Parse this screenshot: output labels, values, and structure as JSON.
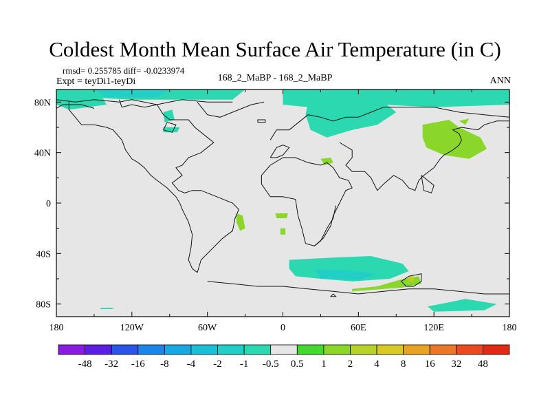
{
  "chart_data": {
    "type": "heatmap",
    "title": "Coldest Month Mean Surface Air Temperature (in C)",
    "stats_line": "rmsd= 0.255785 diff= -0.0233974",
    "experiment_line": "Expt = teyDi1-teyDi",
    "center_label": "168_2_MaBP - 168_2_MaBP",
    "right_label": "ANN",
    "xlim": [
      -180,
      180
    ],
    "ylim": [
      -90,
      90
    ],
    "x_ticks": [
      {
        "value": -180,
        "label": "180"
      },
      {
        "value": -120,
        "label": "120W"
      },
      {
        "value": -60,
        "label": "60W"
      },
      {
        "value": 0,
        "label": "0"
      },
      {
        "value": 60,
        "label": "60E"
      },
      {
        "value": 120,
        "label": "120E"
      },
      {
        "value": 180,
        "label": "180"
      }
    ],
    "y_ticks": [
      {
        "value": 80,
        "label": "80N"
      },
      {
        "value": 40,
        "label": "40N"
      },
      {
        "value": 0,
        "label": "0"
      },
      {
        "value": -40,
        "label": "40S"
      },
      {
        "value": -80,
        "label": "80S"
      }
    ],
    "background_color": "#e6e6e6",
    "colorbar": {
      "labels": [
        "-48",
        "-32",
        "-16",
        "-8",
        "-4",
        "-2",
        "-1",
        "-0.5",
        "0.5",
        "1",
        "2",
        "4",
        "8",
        "16",
        "32",
        "48"
      ],
      "colors": [
        "#8a1be0",
        "#5a1fe0",
        "#2a55e6",
        "#1c86e8",
        "#18a8e2",
        "#1bc0d8",
        "#21cfc6",
        "#2bd8b0",
        "#e6e6e6",
        "#45d82e",
        "#8ad62a",
        "#b8d22a",
        "#d8c828",
        "#e8a228",
        "#ea7828",
        "#ea4a20",
        "#e02a14"
      ]
    },
    "regions": [
      {
        "name": "arctic-asia-band",
        "level": "-0.5",
        "pts": [
          [
            0,
            90
          ],
          [
            180,
            90
          ],
          [
            180,
            78
          ],
          [
            120,
            76
          ],
          [
            80,
            78
          ],
          [
            40,
            74
          ],
          [
            0,
            78
          ]
        ]
      },
      {
        "name": "arctic-siberia-lobe",
        "level": "-0.5",
        "pts": [
          [
            20,
            80
          ],
          [
            80,
            80
          ],
          [
            90,
            72
          ],
          [
            75,
            62
          ],
          [
            55,
            58
          ],
          [
            35,
            52
          ],
          [
            22,
            58
          ],
          [
            18,
            70
          ]
        ]
      },
      {
        "name": "arctic-west-band",
        "level": "-0.5",
        "pts": [
          [
            -180,
            90
          ],
          [
            -30,
            90
          ],
          [
            -40,
            82
          ],
          [
            -80,
            82
          ],
          [
            -120,
            82
          ],
          [
            -160,
            84
          ],
          [
            -180,
            82
          ]
        ]
      },
      {
        "name": "west-pole-patch",
        "level": "-1",
        "pts": [
          [
            -150,
            90
          ],
          [
            -90,
            90
          ],
          [
            -100,
            84
          ],
          [
            -140,
            84
          ]
        ]
      },
      {
        "name": "alaska-patch",
        "level": "-0.5",
        "pts": [
          [
            -180,
            84
          ],
          [
            -145,
            86
          ],
          [
            -140,
            78
          ],
          [
            -170,
            74
          ],
          [
            -180,
            78
          ]
        ]
      },
      {
        "name": "north-america-small-a",
        "level": "-0.5",
        "pts": [
          [
            -95,
            72
          ],
          [
            -88,
            74
          ],
          [
            -86,
            66
          ],
          [
            -94,
            64
          ]
        ]
      },
      {
        "name": "north-america-small-b",
        "level": "-0.5",
        "pts": [
          [
            -95,
            60
          ],
          [
            -82,
            60
          ],
          [
            -84,
            56
          ],
          [
            -95,
            56
          ]
        ]
      },
      {
        "name": "east-asia-patch",
        "level": "1",
        "pts": [
          [
            111,
            62
          ],
          [
            132,
            66
          ],
          [
            140,
            60
          ],
          [
            157,
            52
          ],
          [
            162,
            43
          ],
          [
            148,
            35
          ],
          [
            128,
            38
          ],
          [
            114,
            44
          ],
          [
            111,
            52
          ]
        ]
      },
      {
        "name": "east-asia-small-tail",
        "level": "1",
        "pts": [
          [
            140,
            65
          ],
          [
            148,
            67
          ],
          [
            145,
            62
          ]
        ]
      },
      {
        "name": "central-asia-blip",
        "level": "1",
        "pts": [
          [
            30,
            35
          ],
          [
            38,
            36
          ],
          [
            40,
            32
          ],
          [
            33,
            30
          ]
        ]
      },
      {
        "name": "south-america-streak",
        "level": "1",
        "pts": [
          [
            -37,
            -8
          ],
          [
            -32,
            -10
          ],
          [
            -30,
            -20
          ],
          [
            -34,
            -22
          ],
          [
            -37,
            -15
          ]
        ]
      },
      {
        "name": "atlantic-blip-a",
        "level": "1",
        "pts": [
          [
            -6,
            -8
          ],
          [
            4,
            -8
          ],
          [
            3,
            -12
          ],
          [
            -5,
            -12
          ]
        ]
      },
      {
        "name": "atlantic-blip-b",
        "level": "1",
        "pts": [
          [
            -2,
            -20
          ],
          [
            2,
            -20
          ],
          [
            2,
            -25
          ],
          [
            -2,
            -25
          ]
        ]
      },
      {
        "name": "south-large-blob",
        "level": "-0.5",
        "pts": [
          [
            5,
            -45
          ],
          [
            45,
            -43
          ],
          [
            70,
            -42
          ],
          [
            95,
            -48
          ],
          [
            100,
            -54
          ],
          [
            85,
            -60
          ],
          [
            55,
            -62
          ],
          [
            30,
            -60
          ],
          [
            10,
            -58
          ],
          [
            5,
            -52
          ]
        ]
      },
      {
        "name": "south-core",
        "level": "-1",
        "pts": [
          [
            25,
            -52
          ],
          [
            60,
            -54
          ],
          [
            75,
            -56
          ],
          [
            60,
            -61
          ],
          [
            30,
            -60
          ]
        ]
      },
      {
        "name": "south-green-strip",
        "level": "1",
        "pts": [
          [
            55,
            -70
          ],
          [
            95,
            -67
          ],
          [
            110,
            -64
          ],
          [
            108,
            -58
          ],
          [
            96,
            -60
          ],
          [
            75,
            -66
          ],
          [
            55,
            -68
          ]
        ]
      },
      {
        "name": "south-green-dot",
        "level": "2",
        "pts": [
          [
            100,
            -62
          ],
          [
            104,
            -62
          ],
          [
            104,
            -58
          ],
          [
            100,
            -58
          ]
        ]
      },
      {
        "name": "south-polar-band",
        "level": "-0.5",
        "pts": [
          [
            115,
            -82
          ],
          [
            145,
            -76
          ],
          [
            170,
            -80
          ],
          [
            160,
            -85
          ],
          [
            120,
            -86
          ]
        ]
      },
      {
        "name": "pole-dash",
        "level": "-0.5",
        "pts": [
          [
            -145,
            -83
          ],
          [
            -135,
            -83
          ],
          [
            -135,
            -84
          ],
          [
            -145,
            -84
          ]
        ]
      }
    ],
    "outlines": [
      [
        [
          -180,
          82
        ],
        [
          -165,
          80
        ],
        [
          -150,
          82
        ],
        [
          -130,
          80
        ],
        [
          -120,
          82
        ],
        [
          -100,
          78
        ],
        [
          -90,
          80
        ],
        [
          -80,
          82
        ],
        [
          -60,
          80
        ],
        [
          -40,
          80
        ]
      ],
      [
        [
          -130,
          82
        ],
        [
          -128,
          76
        ],
        [
          -120,
          78
        ],
        [
          -110,
          76
        ],
        [
          -100,
          78
        ],
        [
          -95,
          70
        ],
        [
          -90,
          66
        ],
        [
          -75,
          66
        ],
        [
          -70,
          60
        ],
        [
          -60,
          52
        ],
        [
          -55,
          48
        ],
        [
          -60,
          44
        ],
        [
          -65,
          40
        ],
        [
          -75,
          36
        ],
        [
          -80,
          30
        ],
        [
          -85,
          28
        ],
        [
          -80,
          22
        ],
        [
          -88,
          16
        ],
        [
          -83,
          10
        ],
        [
          -78,
          8
        ],
        [
          -72,
          10
        ],
        [
          -65,
          10
        ],
        [
          -50,
          4
        ],
        [
          -40,
          0
        ],
        [
          -35,
          -5
        ],
        [
          -38,
          -12
        ],
        [
          -40,
          -22
        ],
        [
          -48,
          -28
        ],
        [
          -55,
          -35
        ],
        [
          -60,
          -40
        ],
        [
          -65,
          -45
        ],
        [
          -68,
          -55
        ],
        [
          -72,
          -52
        ],
        [
          -75,
          -45
        ],
        [
          -73,
          -35
        ],
        [
          -72,
          -25
        ],
        [
          -75,
          -15
        ],
        [
          -80,
          -5
        ],
        [
          -82,
          0
        ],
        [
          -85,
          5
        ],
        [
          -92,
          12
        ],
        [
          -100,
          18
        ],
        [
          -105,
          22
        ],
        [
          -110,
          28
        ],
        [
          -115,
          32
        ],
        [
          -120,
          35
        ],
        [
          -125,
          42
        ],
        [
          -128,
          50
        ],
        [
          -135,
          58
        ],
        [
          -140,
          60
        ],
        [
          -150,
          62
        ],
        [
          -160,
          62
        ],
        [
          -165,
          68
        ],
        [
          -170,
          74
        ],
        [
          -170,
          80
        ]
      ],
      [
        [
          -92,
          64
        ],
        [
          -85,
          62
        ],
        [
          -88,
          56
        ],
        [
          -95,
          58
        ],
        [
          -92,
          64
        ]
      ],
      [
        [
          -68,
          80
        ],
        [
          -60,
          70
        ],
        [
          -50,
          68
        ],
        [
          -40,
          72
        ],
        [
          -25,
          78
        ],
        [
          -15,
          80
        ]
      ],
      [
        [
          -20,
          64
        ],
        [
          -14,
          64
        ],
        [
          -14,
          66
        ],
        [
          -20,
          66
        ],
        [
          -20,
          64
        ]
      ],
      [
        [
          -10,
          50
        ],
        [
          -5,
          58
        ],
        [
          5,
          58
        ],
        [
          10,
          62
        ],
        [
          20,
          70
        ],
        [
          30,
          68
        ],
        [
          40,
          65
        ],
        [
          50,
          68
        ],
        [
          60,
          68
        ],
        [
          70,
          72
        ],
        [
          80,
          76
        ],
        [
          100,
          76
        ],
        [
          120,
          76
        ],
        [
          140,
          72
        ],
        [
          160,
          70
        ],
        [
          180,
          68
        ]
      ],
      [
        [
          -10,
          36
        ],
        [
          -5,
          44
        ],
        [
          0,
          46
        ],
        [
          5,
          44
        ],
        [
          0,
          38
        ],
        [
          -5,
          36
        ],
        [
          -10,
          36
        ]
      ],
      [
        [
          -17,
          22
        ],
        [
          -17,
          15
        ],
        [
          -10,
          5
        ],
        [
          0,
          5
        ],
        [
          10,
          3
        ],
        [
          12,
          -10
        ],
        [
          15,
          -20
        ],
        [
          18,
          -32
        ],
        [
          25,
          -34
        ],
        [
          32,
          -28
        ],
        [
          38,
          -18
        ],
        [
          40,
          -10
        ],
        [
          45,
          0
        ],
        [
          50,
          10
        ],
        [
          55,
          12
        ],
        [
          52,
          18
        ],
        [
          45,
          20
        ],
        [
          40,
          28
        ],
        [
          35,
          32
        ],
        [
          30,
          30
        ],
        [
          20,
          32
        ],
        [
          10,
          36
        ],
        [
          0,
          36
        ],
        [
          -10,
          30
        ],
        [
          -17,
          22
        ]
      ],
      [
        [
          45,
          48
        ],
        [
          50,
          45
        ],
        [
          55,
          42
        ],
        [
          55,
          36
        ],
        [
          50,
          30
        ],
        [
          55,
          25
        ],
        [
          65,
          25
        ],
        [
          70,
          20
        ],
        [
          75,
          10
        ],
        [
          80,
          15
        ],
        [
          88,
          22
        ],
        [
          95,
          18
        ],
        [
          100,
          12
        ],
        [
          105,
          10
        ],
        [
          108,
          18
        ],
        [
          112,
          22
        ],
        [
          120,
          28
        ],
        [
          125,
          35
        ],
        [
          128,
          38
        ],
        [
          135,
          42
        ],
        [
          140,
          46
        ],
        [
          142,
          50
        ],
        [
          140,
          55
        ],
        [
          135,
          58
        ],
        [
          142,
          60
        ],
        [
          155,
          58
        ],
        [
          160,
          62
        ],
        [
          170,
          65
        ],
        [
          180,
          65
        ]
      ],
      [
        [
          42,
          -2
        ],
        [
          40,
          -12
        ],
        [
          35,
          -20
        ],
        [
          30,
          -30
        ],
        [
          25,
          -34
        ]
      ],
      [
        [
          94,
          -62
        ],
        [
          100,
          -58
        ],
        [
          110,
          -56
        ],
        [
          110,
          -62
        ],
        [
          104,
          -66
        ],
        [
          98,
          -66
        ],
        [
          94,
          -62
        ]
      ],
      [
        [
          -60,
          -62
        ],
        [
          -40,
          -64
        ],
        [
          -20,
          -66
        ],
        [
          0,
          -66
        ],
        [
          20,
          -68
        ],
        [
          40,
          -70
        ],
        [
          60,
          -72
        ],
        [
          80,
          -70
        ],
        [
          100,
          -68
        ],
        [
          120,
          -68
        ],
        [
          140,
          -70
        ],
        [
          160,
          -72
        ],
        [
          180,
          -72
        ]
      ],
      [
        [
          40,
          -72
        ],
        [
          42,
          -74
        ],
        [
          38,
          -74
        ],
        [
          40,
          -72
        ]
      ],
      [
        [
          110,
          22
        ],
        [
          115,
          18
        ],
        [
          120,
          14
        ],
        [
          118,
          8
        ],
        [
          112,
          10
        ],
        [
          110,
          22
        ]
      ],
      [
        [
          -180,
          75
        ],
        [
          -175,
          78
        ],
        [
          -160,
          78
        ],
        [
          -150,
          75
        ]
      ]
    ]
  }
}
